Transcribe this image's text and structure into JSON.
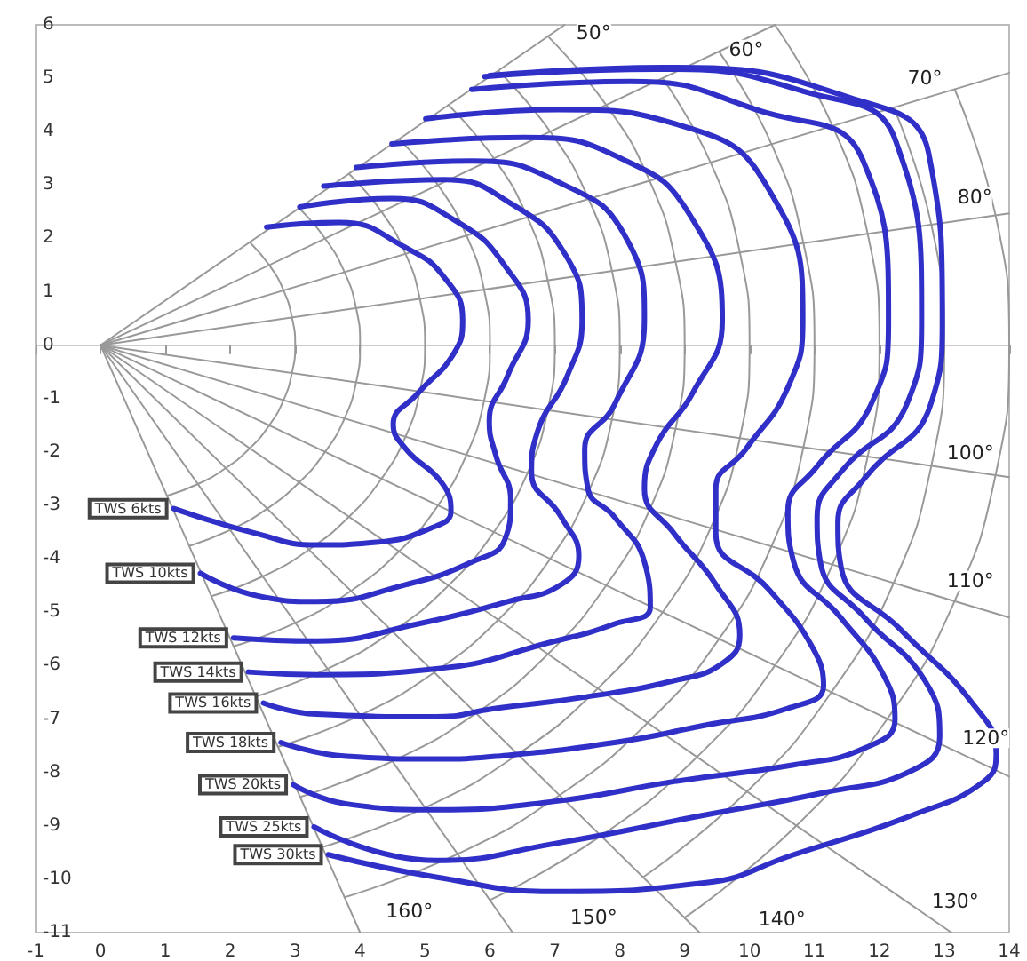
{
  "chart_data": {
    "type": "line",
    "xlim": [
      -1,
      14
    ],
    "xticks": [
      -1,
      0,
      1,
      2,
      3,
      4,
      5,
      6,
      7,
      8,
      9,
      10,
      11,
      12,
      13,
      14
    ],
    "ylim": [
      -11,
      6
    ],
    "yticks": [
      -11,
      -10,
      -9,
      -8,
      -7,
      -6,
      -5,
      -4,
      -3,
      -2,
      -1,
      0,
      1,
      2,
      3,
      4,
      5,
      6
    ],
    "marker": "none",
    "line_style": "solid",
    "annotations": [
      {
        "text": "50°",
        "x": 7.6,
        "y": 5.85
      },
      {
        "text": "60°",
        "x": 9.95,
        "y": 5.54
      },
      {
        "text": "70°",
        "x": 12.7,
        "y": 5.0
      },
      {
        "text": "80°",
        "x": 13.47,
        "y": 2.78
      },
      {
        "text": "100°",
        "x": 13.4,
        "y": -2.01
      },
      {
        "text": "110°",
        "x": 13.4,
        "y": -4.41
      },
      {
        "text": "120°",
        "x": 13.64,
        "y": -7.36
      },
      {
        "text": "130°",
        "x": 13.17,
        "y": -10.41
      },
      {
        "text": "140°",
        "x": 10.5,
        "y": -10.75
      },
      {
        "text": "150°",
        "x": 7.6,
        "y": -10.72
      },
      {
        "text": "160°",
        "x": 4.76,
        "y": -10.6
      }
    ],
    "series": [
      {
        "color": "#999999",
        "x": [
          0,
          7.15
        ],
        "values": [
          0,
          6
        ]
      },
      {
        "color": "#999999",
        "x": [
          0,
          10.39
        ],
        "values": [
          0,
          6
        ]
      },
      {
        "color": "#999999",
        "x": [
          0,
          14
        ],
        "values": [
          0,
          5.1
        ]
      },
      {
        "color": "#999999",
        "x": [
          0,
          14
        ],
        "values": [
          0,
          2.47
        ]
      },
      {
        "color": "#999999",
        "x": [
          0,
          14
        ],
        "values": [
          0,
          -2.47
        ]
      },
      {
        "color": "#999999",
        "x": [
          0,
          14
        ],
        "values": [
          0,
          -5.1
        ]
      },
      {
        "color": "#999999",
        "x": [
          0,
          14
        ],
        "values": [
          0,
          -8.08
        ]
      },
      {
        "color": "#999999",
        "x": [
          0,
          13.11
        ],
        "values": [
          0,
          -11
        ]
      },
      {
        "color": "#999999",
        "x": [
          0,
          9.23
        ],
        "values": [
          0,
          -11
        ]
      },
      {
        "color": "#999999",
        "x": [
          0,
          6.35
        ],
        "values": [
          0,
          -11
        ]
      },
      {
        "color": "#999999",
        "x": [
          0,
          4.0
        ],
        "values": [
          0,
          -11
        ]
      },
      {
        "color": "#999999",
        "x": [
          2.3,
          2.6,
          2.82,
          2.95,
          3,
          2.95,
          2.82,
          2.6,
          2.3,
          1.93,
          1.5,
          1.03
        ],
        "values": [
          1.93,
          1.5,
          1.03,
          0.52,
          0,
          -0.52,
          -1.03,
          -1.5,
          -1.93,
          -2.3,
          -2.6,
          -2.82
        ]
      },
      {
        "color": "#999999",
        "x": [
          3.06,
          3.46,
          3.76,
          3.94,
          4,
          3.94,
          3.76,
          3.46,
          3.06,
          2.57,
          2,
          1.37
        ],
        "values": [
          2.57,
          2,
          1.37,
          0.69,
          0,
          -0.69,
          -1.37,
          -2,
          -2.57,
          -3.06,
          -3.46,
          -3.76
        ]
      },
      {
        "color": "#999999",
        "x": [
          3.83,
          4.33,
          4.7,
          4.92,
          5,
          4.92,
          4.7,
          4.33,
          3.83,
          3.21,
          2.5,
          1.71
        ],
        "values": [
          3.21,
          2.5,
          1.71,
          0.87,
          0,
          -0.87,
          -1.71,
          -2.5,
          -3.21,
          -3.83,
          -4.33,
          -4.7
        ]
      },
      {
        "color": "#999999",
        "x": [
          4.6,
          5.2,
          5.64,
          5.91,
          6,
          5.91,
          5.64,
          5.2,
          4.6,
          3.86,
          3,
          2.05
        ],
        "values": [
          3.86,
          3,
          2.05,
          1.04,
          0,
          -1.04,
          -2.05,
          -3,
          -3.86,
          -4.6,
          -5.2,
          -5.64
        ]
      },
      {
        "color": "#999999",
        "x": [
          5.36,
          6.06,
          6.58,
          6.89,
          7,
          6.89,
          6.58,
          6.06,
          5.36,
          4.5,
          3.5,
          2.39
        ],
        "values": [
          4.5,
          3.5,
          2.39,
          1.22,
          0,
          -1.22,
          -2.39,
          -3.5,
          -4.5,
          -5.36,
          -6.06,
          -6.58
        ]
      },
      {
        "color": "#999999",
        "x": [
          6.13,
          6.93,
          7.52,
          7.88,
          8,
          7.88,
          7.52,
          6.93,
          6.13,
          5.14,
          4,
          2.74
        ],
        "values": [
          5.14,
          4,
          2.74,
          1.39,
          0,
          -1.39,
          -2.74,
          -4,
          -5.14,
          -6.13,
          -6.93,
          -7.52
        ]
      },
      {
        "color": "#999999",
        "x": [
          6.89,
          7.79,
          8.46,
          8.86,
          9,
          8.86,
          8.46,
          7.79,
          6.89,
          5.79,
          4.5,
          3.08
        ],
        "values": [
          5.79,
          4.5,
          3.08,
          1.56,
          0,
          -1.56,
          -3.08,
          -4.5,
          -5.79,
          -6.89,
          -7.79,
          -8.46
        ]
      },
      {
        "color": "#999999",
        "x": [
          8.66,
          9.4,
          9.85,
          10,
          9.85,
          9.4,
          8.66,
          7.66,
          6.43,
          5,
          3.42
        ],
        "values": [
          5,
          3.42,
          1.74,
          0,
          -1.74,
          -3.42,
          -5,
          -6.43,
          -7.66,
          -8.66,
          -9.4
        ]
      },
      {
        "color": "#999999",
        "x": [
          9.53,
          10.34,
          10.83,
          11,
          10.83,
          10.34,
          9.53,
          8.43,
          7.07,
          5.5,
          3.76
        ],
        "values": [
          5.5,
          3.76,
          1.91,
          0,
          -1.91,
          -3.76,
          -5.5,
          -7.07,
          -8.43,
          -9.53,
          -10.34
        ]
      },
      {
        "color": "#999999",
        "x": [
          10.39,
          11.28,
          11.82,
          12,
          11.82,
          11.28,
          10.39,
          9.19,
          7.71,
          6
        ],
        "values": [
          6,
          4.1,
          2.08,
          0,
          -2.08,
          -4.1,
          -6,
          -7.71,
          -9.19,
          -10.39
        ]
      },
      {
        "color": "#999999",
        "x": [
          12.22,
          12.8,
          13,
          12.8,
          12.22,
          11.26,
          9.96,
          8.36
        ],
        "values": [
          4.45,
          2.26,
          0,
          -2.26,
          -4.45,
          -6.5,
          -8.36,
          -9.96
        ]
      },
      {
        "color": "#999999",
        "x": [
          13.16,
          13.79,
          14,
          13.79,
          13.16,
          12.12,
          10.72,
          9.0
        ],
        "values": [
          4.79,
          2.43,
          0,
          -2.43,
          -4.79,
          -7,
          -9.0,
          -10.72
        ]
      },
      {
        "name": "TWS 6kts",
        "color": "#3030c8",
        "x": [
          2.56,
          3.68,
          4.7,
          5.31,
          5.58,
          5.44,
          4.89,
          4.51,
          4.71,
          5.26,
          5.4,
          5.08,
          4.25,
          3.33,
          2.41,
          1.13
        ],
        "values": [
          2.21,
          2.3,
          1.83,
          1.25,
          0.47,
          -0.16,
          -0.9,
          -1.48,
          -1.95,
          -2.58,
          -3.11,
          -3.43,
          -3.69,
          -3.74,
          -3.53,
          -3.06
        ]
      },
      {
        "name": "TWS 10kts",
        "color": "#3030c8",
        "x": [
          3.07,
          4.49,
          5.51,
          6.23,
          6.59,
          6.27,
          5.99,
          6.09,
          6.32,
          6.23,
          5.72,
          4.71,
          3.33,
          2.41,
          1.54
        ],
        "values": [
          2.59,
          2.75,
          2.3,
          1.49,
          0.47,
          -0.58,
          -1.42,
          -2.06,
          -2.9,
          -3.64,
          -4.06,
          -4.48,
          -4.8,
          -4.69,
          -4.27
        ]
      },
      {
        "name": "TWS 12kts",
        "color": "#3030c8",
        "x": [
          3.44,
          5.31,
          6.33,
          7.15,
          7.42,
          7.19,
          6.73,
          6.64,
          7.1,
          7.37,
          7.1,
          6.27,
          4.89,
          3.33,
          2.05
        ],
        "values": [
          2.98,
          3.1,
          2.65,
          1.72,
          0.47,
          -0.58,
          -1.63,
          -2.37,
          -3.22,
          -3.95,
          -4.48,
          -4.8,
          -5.22,
          -5.54,
          -5.48
        ]
      },
      {
        "name": "TWS 14kts",
        "color": "#3030c8",
        "x": [
          3.94,
          5.72,
          7.15,
          8.07,
          8.38,
          7.92,
          7.46,
          7.51,
          7.92,
          8.38,
          8.47,
          7.92,
          7.01,
          5.17,
          3.33,
          2.28
        ],
        "values": [
          3.33,
          3.45,
          3.0,
          2.07,
          0.47,
          -1.11,
          -1.95,
          -2.69,
          -3.22,
          -4.06,
          -4.9,
          -5.22,
          -5.54,
          -6.06,
          -6.17,
          -6.12
        ]
      },
      {
        "name": "TWS 16kts",
        "color": "#3030c8",
        "x": [
          4.49,
          6.53,
          8.07,
          9.09,
          9.58,
          9.12,
          8.57,
          8.38,
          8.84,
          9.48,
          9.85,
          9.58,
          8.84,
          7.46,
          6.09,
          5.17,
          3.33,
          2.51
        ],
        "values": [
          3.77,
          3.89,
          3.47,
          2.42,
          0.47,
          -0.9,
          -1.85,
          -2.69,
          -3.53,
          -4.48,
          -5.43,
          -5.96,
          -6.28,
          -6.59,
          -6.8,
          -6.96,
          -6.91,
          -6.7
        ]
      },
      {
        "name": "TWS 18kts",
        "color": "#3030c8",
        "x": [
          5.01,
          7.05,
          9.09,
          10.31,
          10.82,
          10.59,
          9.94,
          9.48,
          9.48,
          10.31,
          10.96,
          11.14,
          10.59,
          9.3,
          7.92,
          6.09,
          5.17,
          3.79,
          2.78
        ],
        "values": [
          4.24,
          4.41,
          4.06,
          2.89,
          0.47,
          -0.79,
          -1.95,
          -2.69,
          -3.53,
          -4.59,
          -5.64,
          -6.38,
          -6.8,
          -7.12,
          -7.44,
          -7.7,
          -7.75,
          -7.7,
          -7.44
        ]
      },
      {
        "name": "TWS 20kts",
        "color": "#3030c8",
        "x": [
          5.72,
          8.17,
          10.11,
          11.74,
          12.14,
          11.87,
          11.04,
          10.59,
          10.68,
          11.41,
          12.06,
          12.24,
          11.78,
          10.68,
          8.84,
          7.01,
          5.17,
          3.79,
          2.97
        ],
        "values": [
          4.79,
          4.94,
          4.41,
          3.48,
          0.47,
          -1.11,
          -2.27,
          -3.11,
          -4.06,
          -5.11,
          -6.17,
          -7.01,
          -7.54,
          -7.86,
          -8.17,
          -8.54,
          -8.7,
          -8.59,
          -8.23
        ]
      },
      {
        "name": "TWS 25kts",
        "color": "#3030c8",
        "x": [
          5.92,
          8.57,
          10.82,
          12.25,
          12.65,
          12.42,
          11.41,
          11.04,
          11.09,
          11.78,
          12.7,
          12.93,
          12.51,
          11.14,
          9.3,
          7.01,
          5.17,
          3.29
        ],
        "values": [
          5.03,
          5.17,
          4.76,
          3.83,
          0.47,
          -1.11,
          -2.37,
          -3.22,
          -4.06,
          -5.11,
          -6.28,
          -7.33,
          -7.96,
          -8.38,
          -8.8,
          -9.33,
          -9.65,
          -9.02
        ]
      },
      {
        "name": "TWS 30kts",
        "color": "#3030c8",
        "x": [
          6.0,
          8.7,
          11.54,
          12.76,
          12.97,
          12.79,
          11.78,
          11.36,
          11.41,
          12.33,
          13.43,
          13.8,
          13.61,
          12.51,
          10.68,
          9.3,
          7.01,
          5.17,
          3.51
        ],
        "values": [
          5.05,
          5.2,
          4.64,
          3.59,
          0.47,
          -1.11,
          -2.48,
          -3.32,
          -4.16,
          -5.33,
          -6.7,
          -7.65,
          -8.17,
          -8.8,
          -9.54,
          -10.07,
          -10.23,
          -9.96,
          -9.54
        ]
      }
    ]
  }
}
